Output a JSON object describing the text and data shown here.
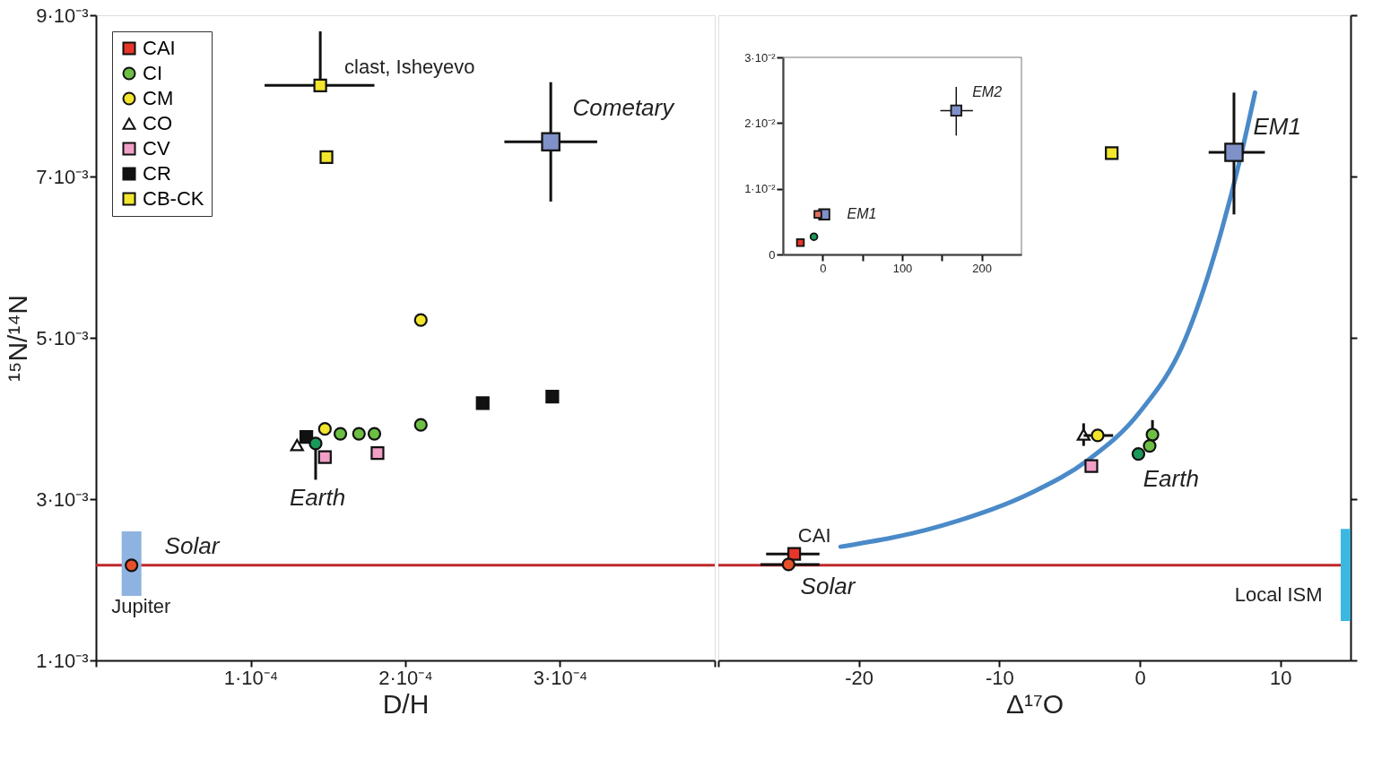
{
  "chart_data": [
    {
      "type": "scatter",
      "xlabel": "D/H",
      "ylabel": "¹⁵N/¹⁴N",
      "xlim": [
        0,
        0.0004
      ],
      "ylim": [
        0.001,
        0.009
      ],
      "xticks": [
        {
          "value": 0,
          "label": null
        },
        {
          "value": 0.0001,
          "label": "1·10⁻⁴"
        },
        {
          "value": 0.0002,
          "label": "2·10⁻⁴"
        },
        {
          "value": 0.0003,
          "label": "3·10⁻⁴"
        },
        {
          "value": 0.0004,
          "label": null
        }
      ],
      "yticks": [
        {
          "value": 0.001,
          "label": "1·10⁻³"
        },
        {
          "value": 0.003,
          "label": "3·10⁻³"
        },
        {
          "value": 0.005,
          "label": "5·10⁻³"
        },
        {
          "value": 0.007,
          "label": "7·10⁻³"
        },
        {
          "value": 0.009,
          "label": "9·10⁻³"
        }
      ],
      "legend": "top left",
      "series": [
        {
          "type": "bar",
          "color": "#8fb3e0",
          "x": [
            2.3e-05
          ],
          "base": [
            0.0018
          ],
          "values": [
            0.0008
          ]
        },
        {
          "color": "#e8502a",
          "marker": "circle",
          "x": [
            2.3e-05
          ],
          "values": [
            0.00218
          ]
        },
        {
          "name": "CAI",
          "color": "#e8352a",
          "marker": "square"
        },
        {
          "name": "CI",
          "color": "#6cbf44",
          "marker": "circle",
          "x": [
            0.000158,
            0.00017,
            0.00018,
            0.00021
          ],
          "values": [
            0.00381,
            0.00381,
            0.00381,
            0.00392
          ]
        },
        {
          "name": "CM",
          "color": "#f2e62c",
          "marker": "circle",
          "x": [
            0.000148,
            0.00021
          ],
          "values": [
            0.00387,
            0.00522
          ]
        },
        {
          "name": "CO",
          "color": "#ffffff",
          "marker": "triangle",
          "x": [
            0.00013
          ],
          "values": [
            0.00367
          ]
        },
        {
          "name": "CV",
          "color": "#f19fc6",
          "marker": "square",
          "x": [
            0.000148,
            0.000182
          ],
          "values": [
            0.00352,
            0.00357
          ]
        },
        {
          "name": "CR",
          "color": "#111111",
          "marker": "square",
          "x": [
            0.000136,
            0.00025,
            0.000295
          ],
          "values": [
            0.00377,
            0.00419,
            0.00427
          ]
        },
        {
          "name": "CB-CK",
          "color": "#f2e62c",
          "marker": "square",
          "x": [
            0.000145,
            0.000149
          ],
          "values": [
            0.00813,
            0.00724
          ],
          "errors": [
            [
              0.00813,
              0.0088
            ],
            null
          ],
          "xerrors": [
            [
              0.000109,
              0.00018
            ],
            null
          ]
        },
        {
          "color": "#1a9a5a",
          "marker": "circle",
          "x": [
            0.000142
          ],
          "values": [
            0.00369
          ],
          "errors": [
            [
              0.00324,
              0.00369
            ]
          ]
        },
        {
          "color": "#8090c8",
          "marker": "square",
          "x": [
            0.000294
          ],
          "values": [
            0.00743
          ],
          "errors": [
            [
              0.00669,
              0.00817
            ]
          ],
          "xerrors": [
            [
              0.000264,
              0.000324
            ]
          ]
        }
      ],
      "ref_lines": [
        {
          "axis": "y",
          "value": 0.00218,
          "color": "#c0282a"
        }
      ],
      "annotations": [
        "clast, Isheyevo",
        "Cometary",
        "Earth",
        "Solar",
        "Jupiter"
      ]
    },
    {
      "type": "scatter",
      "xlabel": "Δ¹⁷O",
      "xlim": [
        -30,
        15
      ],
      "ylim": [
        0.001,
        0.009
      ],
      "xticks": [
        {
          "value": -30,
          "label": null
        },
        -20,
        -10,
        0,
        10
      ],
      "yticks": [
        0.001,
        0.003,
        0.005,
        0.007,
        0.009
      ],
      "tick_labels": "x",
      "series": [
        {
          "type": "bar",
          "color": "#3cb8e0",
          "x": [
            15
          ],
          "base": [
            0.00149
          ],
          "values": [
            0.00114
          ]
        },
        {
          "type": "line",
          "color": "#4a8ac8",
          "x": [
            -21.3,
            -14.1,
            -7.7,
            -3.8,
            0,
            3.2,
            5.4,
            7.1,
            8.2
          ],
          "values": [
            0.00241,
            0.00267,
            0.00308,
            0.00347,
            0.00408,
            0.00497,
            0.00608,
            0.00719,
            0.00804
          ]
        },
        {
          "color": "#e8352a",
          "marker": "square",
          "x": [
            -24.6
          ],
          "values": [
            0.00232
          ],
          "xerrors": [
            [
              -26.6,
              -22.8
            ]
          ]
        },
        {
          "color": "#e8502a",
          "marker": "circle",
          "x": [
            -25.0
          ],
          "values": [
            0.00219
          ],
          "xerrors": [
            [
              -27.0,
              -22.8
            ]
          ]
        },
        {
          "color": "#ffffff",
          "marker": "triangle",
          "x": [
            -4.0
          ],
          "values": [
            0.0038
          ],
          "errors": [
            [
              0.00366,
              0.00394
            ]
          ]
        },
        {
          "color": "#f2e62c",
          "marker": "circle",
          "x": [
            -3.0
          ],
          "values": [
            0.00379
          ],
          "xerrors": [
            [
              -4.0,
              -1.9
            ]
          ]
        },
        {
          "color": "#f19fc6",
          "marker": "square",
          "x": [
            -3.45
          ],
          "values": [
            0.00341
          ]
        },
        {
          "color": "#6cbf44",
          "marker": "circle",
          "x": [
            0.9,
            0.7
          ],
          "values": [
            0.0038,
            0.00366
          ],
          "errors": [
            [
              0.00362,
              0.00398
            ],
            null
          ]
        },
        {
          "color": "#1a9a5a",
          "marker": "circle",
          "x": [
            -0.1
          ],
          "values": [
            0.00356
          ]
        },
        {
          "color": "#f2e62c",
          "marker": "square",
          "x": [
            -2.0
          ],
          "values": [
            0.00729
          ]
        },
        {
          "color": "#8090c8",
          "marker": "square",
          "x": [
            6.7
          ],
          "values": [
            0.0073
          ],
          "errors": [
            [
              0.00653,
              0.00804
            ]
          ],
          "xerrors": [
            [
              4.9,
              8.9
            ]
          ]
        }
      ],
      "ref_lines": [
        {
          "axis": "y",
          "value": 0.00218,
          "color": "#c0282a"
        }
      ],
      "annotations": [
        "CAI",
        "Solar",
        "Earth",
        "EM1",
        "Local ISM"
      ]
    },
    {
      "type": "scatter",
      "xlim": [
        -50,
        250
      ],
      "ylim": [
        0,
        0.03
      ],
      "xticks": [
        0,
        {
          "value": 50,
          "label": null
        },
        100,
        {
          "value": 150,
          "label": null
        },
        200
      ],
      "yticks": [
        0,
        {
          "value": 0.01,
          "label": "1·10⁻²"
        },
        {
          "value": 0.02,
          "label": "2·10⁻²"
        },
        {
          "value": 0.03,
          "label": "3·10⁻²"
        }
      ],
      "series": [
        {
          "color": "#e8352a",
          "marker": "square",
          "x": [
            -28
          ],
          "values": [
            0.0018
          ]
        },
        {
          "color": "#1a9a5a",
          "marker": "circle",
          "x": [
            -11
          ],
          "values": [
            0.0027
          ]
        },
        {
          "color": "#8090c8",
          "marker": "square",
          "x": [
            2
          ],
          "values": [
            0.0061
          ]
        },
        {
          "color": "#e07060",
          "marker": "square",
          "x": [
            -6
          ],
          "values": [
            0.0061
          ]
        },
        {
          "color": "#8090c8",
          "marker": "square",
          "x": [
            168
          ],
          "values": [
            0.0219
          ],
          "errors": [
            [
              0.0181,
              0.0255
            ]
          ],
          "xerrors": [
            [
              148,
              189
            ]
          ]
        }
      ],
      "annotations": [
        "EM2",
        "EM1"
      ]
    }
  ]
}
